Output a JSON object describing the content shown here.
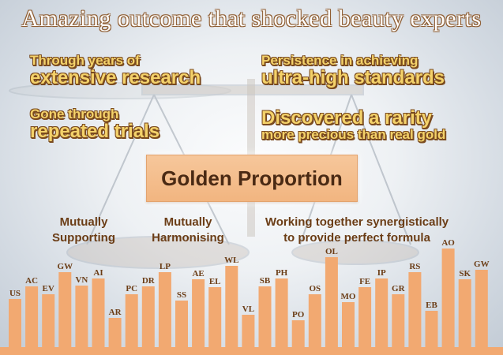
{
  "title": "Amazing outcome that shocked beauty experts",
  "left_block": {
    "line1": "Through years of",
    "line2": "extensive research",
    "line3": "Gone through",
    "line4": "repeated trials"
  },
  "right_block": {
    "line1": "Persistence in achieving",
    "line2": "ultra-high standards",
    "line3": "Discovered a rarity",
    "line4": "more precious than real gold"
  },
  "golden_label": "Golden Proportion",
  "sub_labels": {
    "mutually_supporting": [
      "Mutually",
      "Supporting"
    ],
    "mutually_harmonising": [
      "Mutually",
      "Harmonising"
    ],
    "synergy": [
      "Working together synergistically",
      "to provide perfect formula"
    ]
  },
  "colors": {
    "bar": "#f2a971",
    "label": "#6b3d16",
    "highlight": "#f4d26a",
    "outline": "#7a4a1e"
  },
  "chart_data": {
    "type": "bar",
    "categories": [
      "US",
      "AC",
      "EV",
      "GW",
      "VN",
      "AI",
      "AR",
      "PC",
      "DR",
      "LP",
      "SS",
      "AE",
      "EL",
      "WL",
      "VL",
      "SB",
      "PH",
      "PO",
      "OS",
      "OL",
      "MO",
      "FE",
      "IP",
      "GR",
      "RS",
      "EB",
      "AO",
      "SK",
      "GW"
    ],
    "values": [
      61,
      77,
      67,
      95,
      78,
      87,
      37,
      67,
      77,
      95,
      59,
      86,
      76,
      103,
      41,
      77,
      87,
      34,
      67,
      114,
      57,
      76,
      87,
      67,
      95,
      46,
      125,
      86,
      98
    ],
    "ylim": [
      0,
      130
    ]
  }
}
